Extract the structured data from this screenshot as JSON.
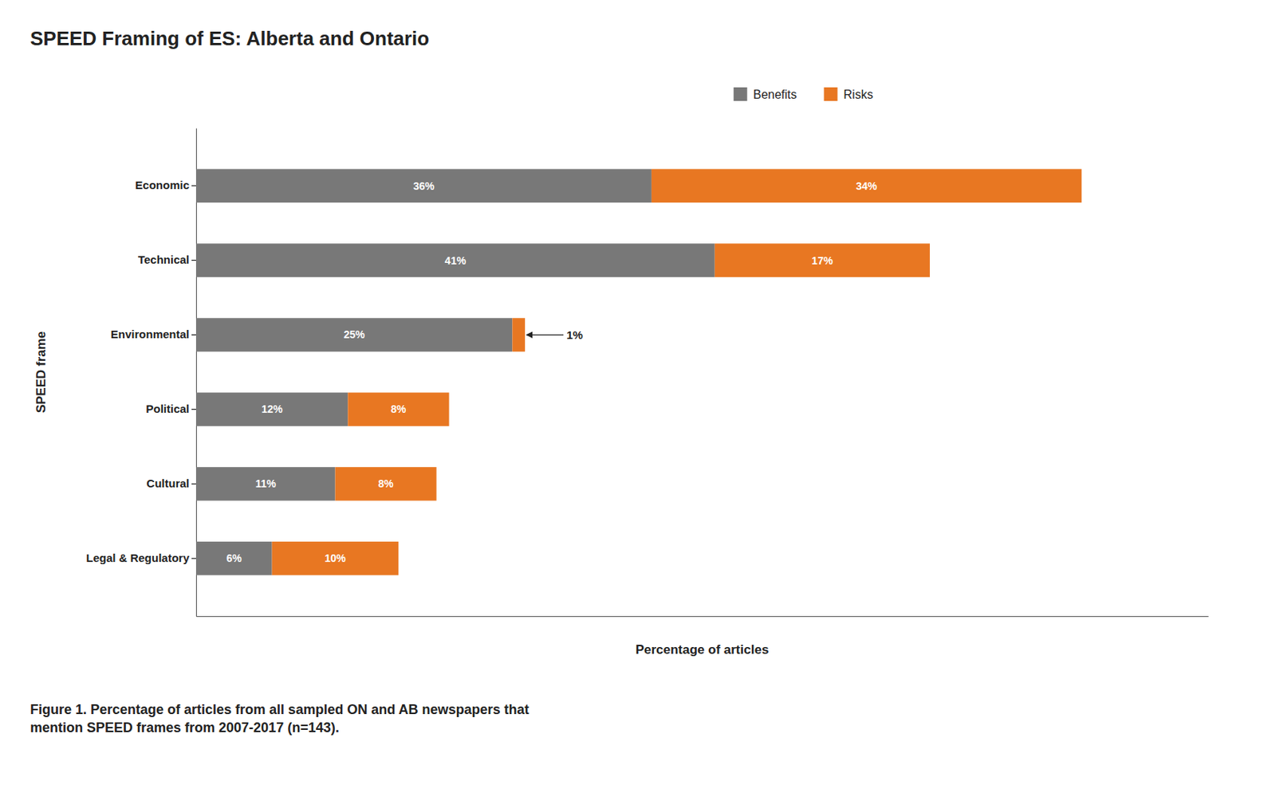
{
  "chart_data": {
    "type": "bar",
    "orientation": "horizontal",
    "stacked": true,
    "title": "SPEED Framing of ES: Alberta and Ontario",
    "x_label": "Percentage of articles",
    "y_label": "SPEED frame",
    "caption": "Figure 1. Percentage of articles from all sampled ON and AB newspapers that\nmention SPEED frames from 2007-2017 (n=143).",
    "categories": [
      "Legal & Regulatory",
      "Cultural",
      "Political",
      "Environmental",
      "Technical",
      "Economic"
    ],
    "series": [
      {
        "name": "Benefits",
        "color": "#787878",
        "values": [
          6,
          11,
          12,
          25,
          41,
          36
        ],
        "value_labels": [
          "6%",
          "11%",
          "12%",
          "25%",
          "41%",
          "36%"
        ]
      },
      {
        "name": "Risks",
        "color": "#E87722",
        "values": [
          10,
          8,
          8,
          1,
          17,
          34
        ],
        "value_labels": [
          "10%",
          "8%",
          "8%",
          "1%",
          "17%",
          "34%"
        ]
      }
    ],
    "xlim": [
      0,
      80
    ],
    "tick_labels": "y",
    "data_labels": true,
    "legend": "top",
    "grid": false
  }
}
